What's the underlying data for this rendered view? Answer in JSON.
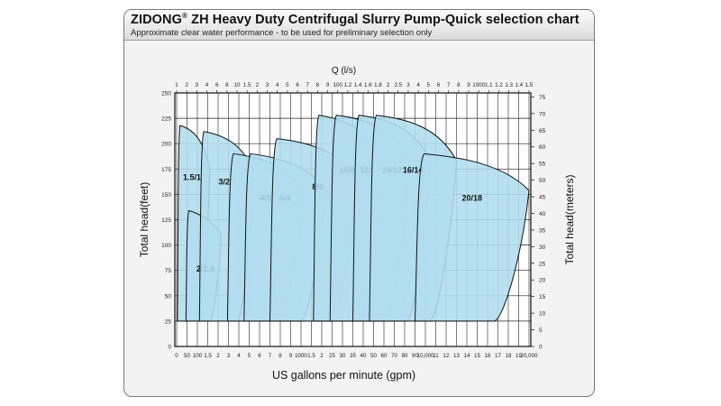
{
  "title": {
    "brand": "ZIDONG",
    "mark": "®",
    "rest": " ZH Heavy Duty Centrifugal Slurry Pump-Quick selection chart"
  },
  "subtitle": "Approximate clear water performance - to be used for preliminary selection only",
  "chart_data": {
    "type": "area",
    "title": "ZIDONG® ZH Heavy Duty Centrifugal Slurry Pump-Quick selection chart",
    "subtitle": "Approximate clear water performance - to be used for preliminary selection only",
    "xlabel": "US gallons per minute (gpm)",
    "x2label": "Q (l/s)",
    "ylabel": "Total head(feet)",
    "y2label": "Total head(meters)",
    "x_scale": "log",
    "grid": true,
    "ylim": [
      0,
      250
    ],
    "y_ticks": [
      0,
      25,
      50,
      75,
      100,
      125,
      150,
      175,
      200,
      225,
      250
    ],
    "y2lim": [
      0,
      76.2
    ],
    "y2_ticks": [
      0,
      5,
      10,
      15,
      20,
      25,
      30,
      35,
      40,
      45,
      50,
      55,
      60,
      65,
      70,
      75
    ],
    "x_ticks": [
      "0",
      "50",
      "100",
      "1.5",
      "2",
      "3",
      "4",
      "5",
      "6",
      "7",
      "8",
      "9",
      "1000",
      "1.5",
      "2",
      "25",
      "30",
      "35",
      "40",
      "50",
      "60",
      "70",
      "80",
      "90",
      "10,000",
      "11",
      "12",
      "13",
      "14",
      "15",
      "16",
      "17",
      "18",
      "19",
      "20,000"
    ],
    "x2_ticks": [
      "1",
      "2",
      "3",
      "4",
      "6",
      "8",
      "10",
      "1.5",
      "2",
      "3",
      "4",
      "5",
      "6",
      "7",
      "8",
      "9",
      "100",
      "1.2",
      "1.4",
      "1.6",
      "1.8",
      "2",
      "2.5",
      "3",
      "4",
      "5",
      "6",
      "7",
      "8",
      "9",
      "1000",
      "1.1",
      "1.2",
      "1.3",
      "1.4",
      "1.5"
    ],
    "series": [
      {
        "name": "1.5/1",
        "gpm_range": [
          4,
          160
        ],
        "head_ft": [
          25,
          218
        ]
      },
      {
        "name": "2/1.5",
        "gpm_range": [
          45,
          230
        ],
        "head_ft": [
          25,
          134
        ]
      },
      {
        "name": "3/2",
        "gpm_range": [
          110,
          550
        ],
        "head_ft": [
          25,
          212
        ]
      },
      {
        "name": "4/3",
        "gpm_range": [
          290,
          1100
        ],
        "head_ft": [
          25,
          190
        ]
      },
      {
        "name": "6/4",
        "gpm_range": [
          450,
          2200
        ],
        "head_ft": [
          25,
          190
        ]
      },
      {
        "name": "8/6",
        "gpm_range": [
          700,
          3700
        ],
        "head_ft": [
          25,
          205
        ]
      },
      {
        "name": "10/8",
        "gpm_range": [
          1600,
          5700
        ],
        "head_ft": [
          25,
          228
        ]
      },
      {
        "name": "12/10",
        "gpm_range": [
          2400,
          8500
        ],
        "head_ft": [
          25,
          228
        ]
      },
      {
        "name": "14/12",
        "gpm_range": [
          3500,
          10500
        ],
        "head_ft": [
          25,
          228
        ]
      },
      {
        "name": "16/14",
        "gpm_range": [
          4600,
          13000
        ],
        "head_ft": [
          25,
          228
        ]
      },
      {
        "name": "20/18",
        "gpm_range": [
          9000,
          21000
        ],
        "head_ft": [
          25,
          190
        ]
      }
    ]
  }
}
